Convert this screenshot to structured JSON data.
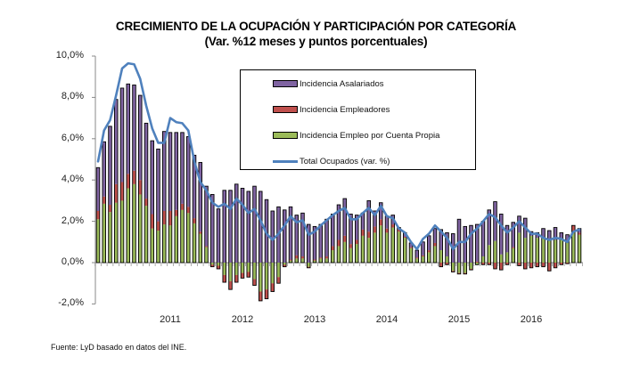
{
  "chart_data": {
    "type": "bar",
    "subtype": "stacked-bar-with-line",
    "title": "CRECIMIENTO DE LA OCUPACIÓN Y PARTICIPACIÓN POR CATEGORÍA",
    "subtitle": "(Var. %12 meses  y puntos porcentuales)",
    "xlabel": "",
    "ylabel": "",
    "ylim": [
      -2,
      10
    ],
    "yticks": [
      "-2,0%",
      "0,0%",
      "2,0%",
      "4,0%",
      "6,0%",
      "8,0%",
      "10,0%"
    ],
    "ytick_values": [
      -2,
      0,
      2,
      4,
      6,
      8,
      10
    ],
    "xticks": [
      "2011",
      "2012",
      "2013",
      "2014",
      "2015",
      "2016"
    ],
    "xtick_index": [
      12,
      24,
      36,
      48,
      60,
      72
    ],
    "period": "monthly, Jan 2010 – Sep 2016",
    "n_points": 81,
    "grid": false,
    "legend_position": "top-center",
    "colors": {
      "asalariados": "#8064A2",
      "empleadores": "#C0504D",
      "cuenta_propia": "#9BBB59",
      "total": "#4F81BD"
    },
    "legend": [
      "Incidencia Asalariados",
      "Incidencia Empleadores",
      "Incidencia Empleo por Cuenta Propia",
      "Total Ocupados (var.  %)"
    ],
    "series": [
      {
        "name": "Incidencia Empleo por Cuenta Propia",
        "key": "cuenta_propia",
        "values": [
          2.1,
          2.85,
          2.45,
          2.9,
          3.0,
          3.6,
          3.8,
          3.3,
          2.75,
          1.65,
          1.55,
          1.85,
          1.8,
          2.25,
          2.55,
          2.4,
          1.9,
          1.4,
          0.75,
          -0.1,
          -0.15,
          -0.6,
          -0.9,
          -0.6,
          -0.5,
          -0.45,
          -0.8,
          -1.4,
          -1.3,
          -1.0,
          -0.7,
          -0.1,
          0.1,
          0.2,
          0.2,
          -0.2,
          0.1,
          0.2,
          0.2,
          0.6,
          0.8,
          1.0,
          0.7,
          0.9,
          1.3,
          1.2,
          1.45,
          1.8,
          1.45,
          1.7,
          1.5,
          1.2,
          0.7,
          0.2,
          0.3,
          0.5,
          0.8,
          0.6,
          0.3,
          -0.4,
          -0.5,
          -0.5,
          -0.3,
          -0.1,
          0.3,
          0.85,
          1.05,
          0.4,
          0.5,
          0.7,
          1.45,
          1.2,
          1.3,
          1.2,
          1.15,
          1.15,
          1.1,
          1.2,
          1.0,
          1.5,
          1.35
        ]
      },
      {
        "name": "Incidencia Empleadores",
        "key": "empleadores",
        "values": [
          0.4,
          0.35,
          0.35,
          0.9,
          0.9,
          0.7,
          0.65,
          0.7,
          0.35,
          0.7,
          0.45,
          0.65,
          0.7,
          0.3,
          0.3,
          0.3,
          0.25,
          0.1,
          0.05,
          -0.1,
          -0.15,
          -0.35,
          -0.4,
          -0.35,
          -0.25,
          -0.25,
          -0.3,
          -0.45,
          -0.45,
          -0.4,
          -0.3,
          -0.1,
          0.05,
          0.15,
          0.1,
          -0.05,
          0.05,
          0.05,
          0.1,
          0.2,
          0.3,
          0.3,
          0.2,
          0.2,
          0.3,
          0.3,
          0.3,
          0.3,
          0.2,
          0.15,
          0.1,
          0.05,
          0.05,
          0.05,
          0.05,
          0.1,
          0.15,
          -0.2,
          -0.1,
          -0.05,
          -0.05,
          -0.05,
          -0.05,
          0.05,
          -0.1,
          -0.1,
          -0.3,
          -0.35,
          -0.1,
          0.05,
          -0.15,
          -0.3,
          -0.25,
          -0.2,
          -0.2,
          -0.4,
          -0.25,
          -0.1,
          -0.05,
          0.3,
          0.1
        ]
      },
      {
        "name": "Incidencia Asalariados",
        "key": "asalariados",
        "values": [
          2.1,
          2.65,
          3.8,
          4.1,
          4.55,
          4.35,
          4.15,
          4.1,
          3.65,
          3.55,
          3.5,
          3.85,
          3.8,
          3.75,
          3.45,
          3.4,
          3.05,
          3.35,
          2.9,
          3.3,
          2.6,
          3.5,
          3.5,
          3.8,
          3.6,
          3.45,
          3.7,
          3.45,
          3.05,
          2.5,
          2.7,
          2.55,
          2.55,
          1.95,
          2.1,
          1.85,
          1.6,
          1.6,
          1.8,
          1.55,
          1.7,
          1.8,
          1.45,
          1.2,
          0.8,
          1.5,
          0.75,
          0.8,
          0.6,
          0.45,
          0.1,
          0.2,
          0.2,
          0.35,
          0.65,
          0.7,
          0.7,
          1.0,
          1.15,
          1.4,
          2.1,
          1.75,
          1.8,
          1.8,
          1.7,
          1.7,
          1.9,
          1.95,
          1.3,
          1.2,
          0.8,
          0.95,
          0.2,
          0.25,
          0.5,
          0.4,
          0.6,
          0.25,
          0.35,
          0.0,
          0.2
        ]
      },
      {
        "name": "Total Ocupados (var.  %)",
        "key": "total",
        "type": "line",
        "values": [
          4.9,
          6.4,
          6.9,
          8.1,
          9.4,
          9.65,
          9.6,
          8.9,
          7.6,
          6.5,
          5.8,
          5.8,
          7.0,
          6.8,
          6.75,
          6.4,
          4.9,
          3.9,
          3.5,
          2.9,
          2.7,
          2.85,
          2.6,
          3.1,
          2.8,
          2.4,
          2.6,
          2.05,
          1.4,
          1.1,
          1.4,
          1.8,
          2.25,
          1.95,
          2.05,
          1.35,
          1.5,
          1.8,
          2.05,
          2.3,
          2.5,
          2.65,
          2.1,
          2.1,
          2.4,
          2.65,
          2.3,
          2.75,
          2.25,
          2.15,
          1.65,
          1.45,
          1.0,
          0.65,
          1.15,
          1.4,
          1.8,
          1.5,
          1.2,
          0.65,
          1.0,
          1.0,
          1.4,
          1.65,
          2.0,
          2.35,
          2.2,
          1.8,
          1.45,
          1.7,
          2.0,
          1.7,
          1.4,
          1.4,
          1.2,
          1.1,
          1.2,
          1.15,
          1.0,
          1.5,
          1.6
        ]
      }
    ]
  },
  "source": "Fuente: LyD basado en datos del INE."
}
